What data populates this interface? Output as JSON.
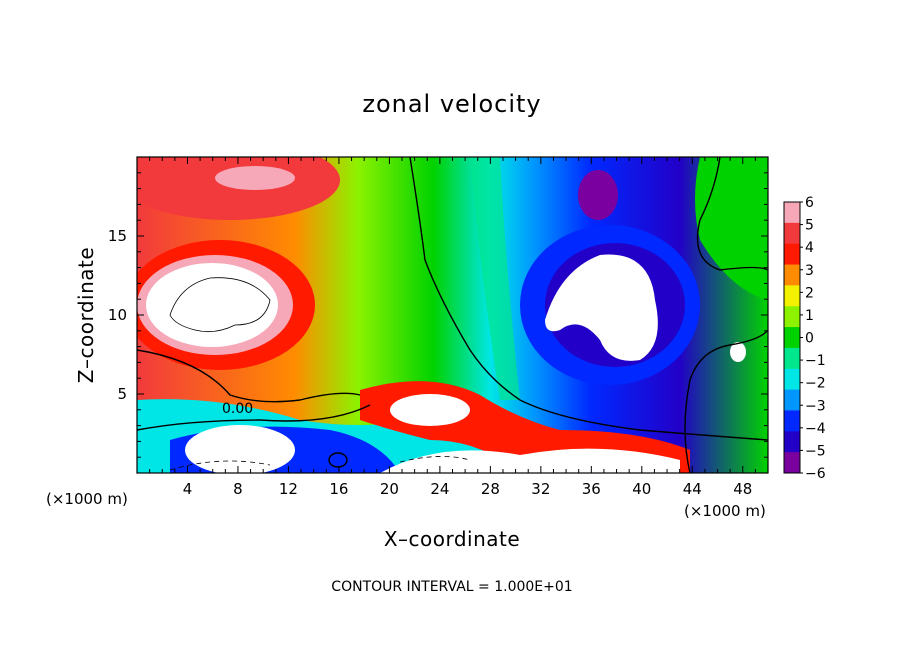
{
  "chart_data": {
    "type": "heatmap",
    "title": "zonal velocity",
    "xlabel": "X–coordinate",
    "ylabel": "Z–coordinate",
    "x_unit_left": "(×1000 m)",
    "x_unit_right": "(×1000 m)",
    "xlim": [
      0,
      50
    ],
    "ylim": [
      0,
      20
    ],
    "x_ticks": [
      "4",
      "8",
      "12",
      "16",
      "20",
      "24",
      "28",
      "32",
      "36",
      "40",
      "44",
      "48"
    ],
    "y_ticks": [
      "5",
      "10",
      "15"
    ],
    "colorbar": {
      "labels": [
        "6",
        "5",
        "4",
        "3",
        "2",
        "1",
        "0",
        "−1",
        "−2",
        "−3",
        "−4",
        "−5",
        "−6"
      ],
      "colors": [
        "#f7a8b8",
        "#f23a3c",
        "#ff1a00",
        "#ff8c00",
        "#f2f200",
        "#8cf200",
        "#00d200",
        "#00e68c",
        "#00e6e6",
        "#0096ff",
        "#0028ff",
        "#2200c8",
        "#7a00a0"
      ]
    },
    "contour_note": "CONTOUR INTERVAL = 1.000E+01",
    "contour_labels": [
      "0.00"
    ]
  }
}
